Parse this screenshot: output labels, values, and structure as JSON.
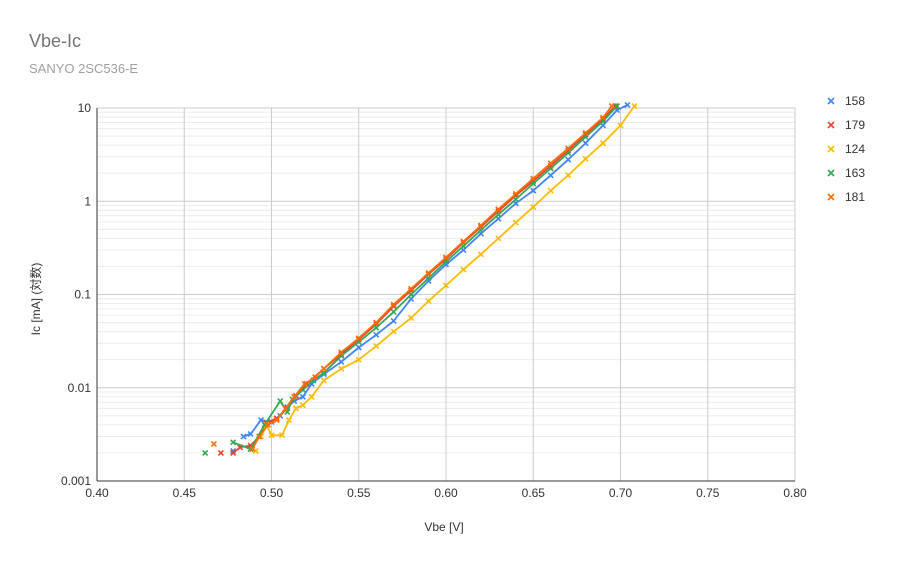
{
  "chart_data": {
    "type": "line",
    "title": "Vbe-Ic",
    "subtitle": "SANYO 2SC536-E",
    "xlabel": "Vbe [V]",
    "ylabel": "Ic [mA] (対数)",
    "x_scale": "linear",
    "y_scale": "log",
    "xlim": [
      0.4,
      0.8
    ],
    "ylim": [
      0.001,
      10
    ],
    "x_ticks": [
      "0.40",
      "0.45",
      "0.50",
      "0.55",
      "0.60",
      "0.65",
      "0.70",
      "0.75",
      "0.80"
    ],
    "y_ticks": [
      "0.001",
      "0.01",
      "0.1",
      "1",
      "10"
    ],
    "grid": true,
    "legend_position": "right",
    "marker": "x",
    "series": [
      {
        "name": "158",
        "color": "#4285f4",
        "points": [
          [
            0.478,
            0.0021
          ],
          [
            0.484,
            0.003
          ],
          [
            0.488,
            0.0032
          ],
          [
            0.494,
            0.0045
          ],
          [
            0.5,
            0.0043
          ],
          [
            0.505,
            0.005
          ],
          [
            0.509,
            0.0062
          ],
          [
            0.513,
            0.0072
          ],
          [
            0.518,
            0.008
          ],
          [
            0.523,
            0.011
          ],
          [
            0.53,
            0.014
          ],
          [
            0.54,
            0.019
          ],
          [
            0.55,
            0.027
          ],
          [
            0.56,
            0.037
          ],
          [
            0.57,
            0.052
          ],
          [
            0.58,
            0.09
          ],
          [
            0.59,
            0.14
          ],
          [
            0.6,
            0.21
          ],
          [
            0.61,
            0.3
          ],
          [
            0.62,
            0.45
          ],
          [
            0.63,
            0.65
          ],
          [
            0.64,
            0.95
          ],
          [
            0.65,
            1.3
          ],
          [
            0.66,
            1.9
          ],
          [
            0.67,
            2.8
          ],
          [
            0.68,
            4.2
          ],
          [
            0.69,
            6.5
          ],
          [
            0.698,
            9.5
          ],
          [
            0.704,
            10.8
          ]
        ]
      },
      {
        "name": "179",
        "color": "#ea4335",
        "points": [
          [
            0.471,
            0.002
          ],
          [
            0.478,
            0.002
          ],
          [
            0.482,
            0.0023
          ],
          [
            0.488,
            0.0024
          ],
          [
            0.493,
            0.003
          ],
          [
            0.497,
            0.0042
          ],
          [
            0.503,
            0.0047
          ],
          [
            0.509,
            0.006
          ],
          [
            0.514,
            0.0082
          ],
          [
            0.52,
            0.011
          ],
          [
            0.53,
            0.016
          ],
          [
            0.54,
            0.023
          ],
          [
            0.55,
            0.033
          ],
          [
            0.56,
            0.048
          ],
          [
            0.57,
            0.075
          ],
          [
            0.58,
            0.11
          ],
          [
            0.59,
            0.165
          ],
          [
            0.6,
            0.24
          ],
          [
            0.61,
            0.36
          ],
          [
            0.62,
            0.53
          ],
          [
            0.63,
            0.78
          ],
          [
            0.64,
            1.15
          ],
          [
            0.65,
            1.65
          ],
          [
            0.66,
            2.4
          ],
          [
            0.67,
            3.5
          ],
          [
            0.68,
            5.2
          ],
          [
            0.69,
            7.6
          ],
          [
            0.697,
            10.5
          ]
        ]
      },
      {
        "name": "124",
        "color": "#fbbc04",
        "points": [
          [
            0.491,
            0.0021
          ],
          [
            0.494,
            0.003
          ],
          [
            0.497,
            0.004
          ],
          [
            0.5,
            0.0031
          ],
          [
            0.506,
            0.0031
          ],
          [
            0.51,
            0.0045
          ],
          [
            0.514,
            0.006
          ],
          [
            0.518,
            0.0065
          ],
          [
            0.523,
            0.008
          ],
          [
            0.53,
            0.012
          ],
          [
            0.54,
            0.016
          ],
          [
            0.55,
            0.02
          ],
          [
            0.56,
            0.028
          ],
          [
            0.57,
            0.04
          ],
          [
            0.58,
            0.056
          ],
          [
            0.59,
            0.085
          ],
          [
            0.6,
            0.125
          ],
          [
            0.61,
            0.185
          ],
          [
            0.62,
            0.27
          ],
          [
            0.63,
            0.4
          ],
          [
            0.64,
            0.59
          ],
          [
            0.65,
            0.87
          ],
          [
            0.66,
            1.3
          ],
          [
            0.67,
            1.9
          ],
          [
            0.68,
            2.85
          ],
          [
            0.69,
            4.2
          ],
          [
            0.7,
            6.5
          ],
          [
            0.708,
            10.5
          ]
        ]
      },
      {
        "name": "163",
        "color": "#34a853",
        "points": [
          [
            0.462,
            0.002
          ],
          [
            0.478,
            0.0026
          ],
          [
            0.488,
            0.0022
          ],
          [
            0.496,
            0.004
          ],
          [
            0.505,
            0.0072
          ],
          [
            0.509,
            0.0055
          ],
          [
            0.512,
            0.0075
          ],
          [
            0.518,
            0.0095
          ],
          [
            0.524,
            0.012
          ],
          [
            0.53,
            0.0145
          ],
          [
            0.54,
            0.022
          ],
          [
            0.55,
            0.031
          ],
          [
            0.56,
            0.044
          ],
          [
            0.57,
            0.065
          ],
          [
            0.58,
            0.1
          ],
          [
            0.59,
            0.15
          ],
          [
            0.6,
            0.225
          ],
          [
            0.61,
            0.33
          ],
          [
            0.62,
            0.49
          ],
          [
            0.63,
            0.72
          ],
          [
            0.64,
            1.05
          ],
          [
            0.65,
            1.55
          ],
          [
            0.66,
            2.25
          ],
          [
            0.67,
            3.3
          ],
          [
            0.68,
            4.9
          ],
          [
            0.69,
            7.2
          ],
          [
            0.698,
            10.5
          ]
        ]
      },
      {
        "name": "181",
        "color": "#ff6d01",
        "points": [
          [
            0.467,
            0.0025
          ],
          [
            0.489,
            0.0022
          ],
          [
            0.493,
            0.003
          ],
          [
            0.498,
            0.004
          ],
          [
            0.503,
            0.0045
          ],
          [
            0.508,
            0.006
          ],
          [
            0.513,
            0.008
          ],
          [
            0.519,
            0.011
          ],
          [
            0.525,
            0.013
          ],
          [
            0.53,
            0.016
          ],
          [
            0.54,
            0.024
          ],
          [
            0.55,
            0.034
          ],
          [
            0.56,
            0.05
          ],
          [
            0.57,
            0.078
          ],
          [
            0.58,
            0.115
          ],
          [
            0.59,
            0.17
          ],
          [
            0.6,
            0.25
          ],
          [
            0.61,
            0.37
          ],
          [
            0.62,
            0.55
          ],
          [
            0.63,
            0.82
          ],
          [
            0.64,
            1.2
          ],
          [
            0.65,
            1.75
          ],
          [
            0.66,
            2.55
          ],
          [
            0.67,
            3.7
          ],
          [
            0.68,
            5.4
          ],
          [
            0.69,
            7.9
          ],
          [
            0.695,
            10.5
          ]
        ]
      }
    ]
  }
}
